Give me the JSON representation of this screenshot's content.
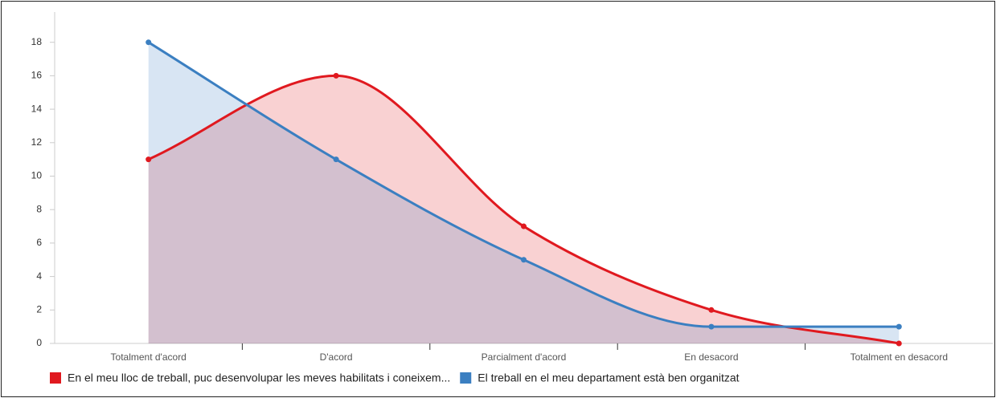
{
  "chart_data": {
    "type": "area",
    "categories": [
      "Totalment d'acord",
      "D'acord",
      "Parcialment d'acord",
      "En desacord",
      "Totalment en desacord"
    ],
    "series": [
      {
        "name": "En el meu lloc de treball, puc desenvolupar les meves habilitats i coneixem...",
        "color": "#e0191f",
        "values": [
          11,
          16,
          7,
          2,
          0
        ]
      },
      {
        "name": "El treball en el meu departament està ben organitzat",
        "color": "#3b7fc1",
        "values": [
          18,
          11,
          5,
          1,
          1
        ]
      }
    ],
    "ylim": [
      0,
      20
    ],
    "yticks": [
      0,
      2,
      4,
      6,
      8,
      10,
      12,
      14,
      16,
      18
    ],
    "grid": false,
    "legend": "bottom"
  }
}
